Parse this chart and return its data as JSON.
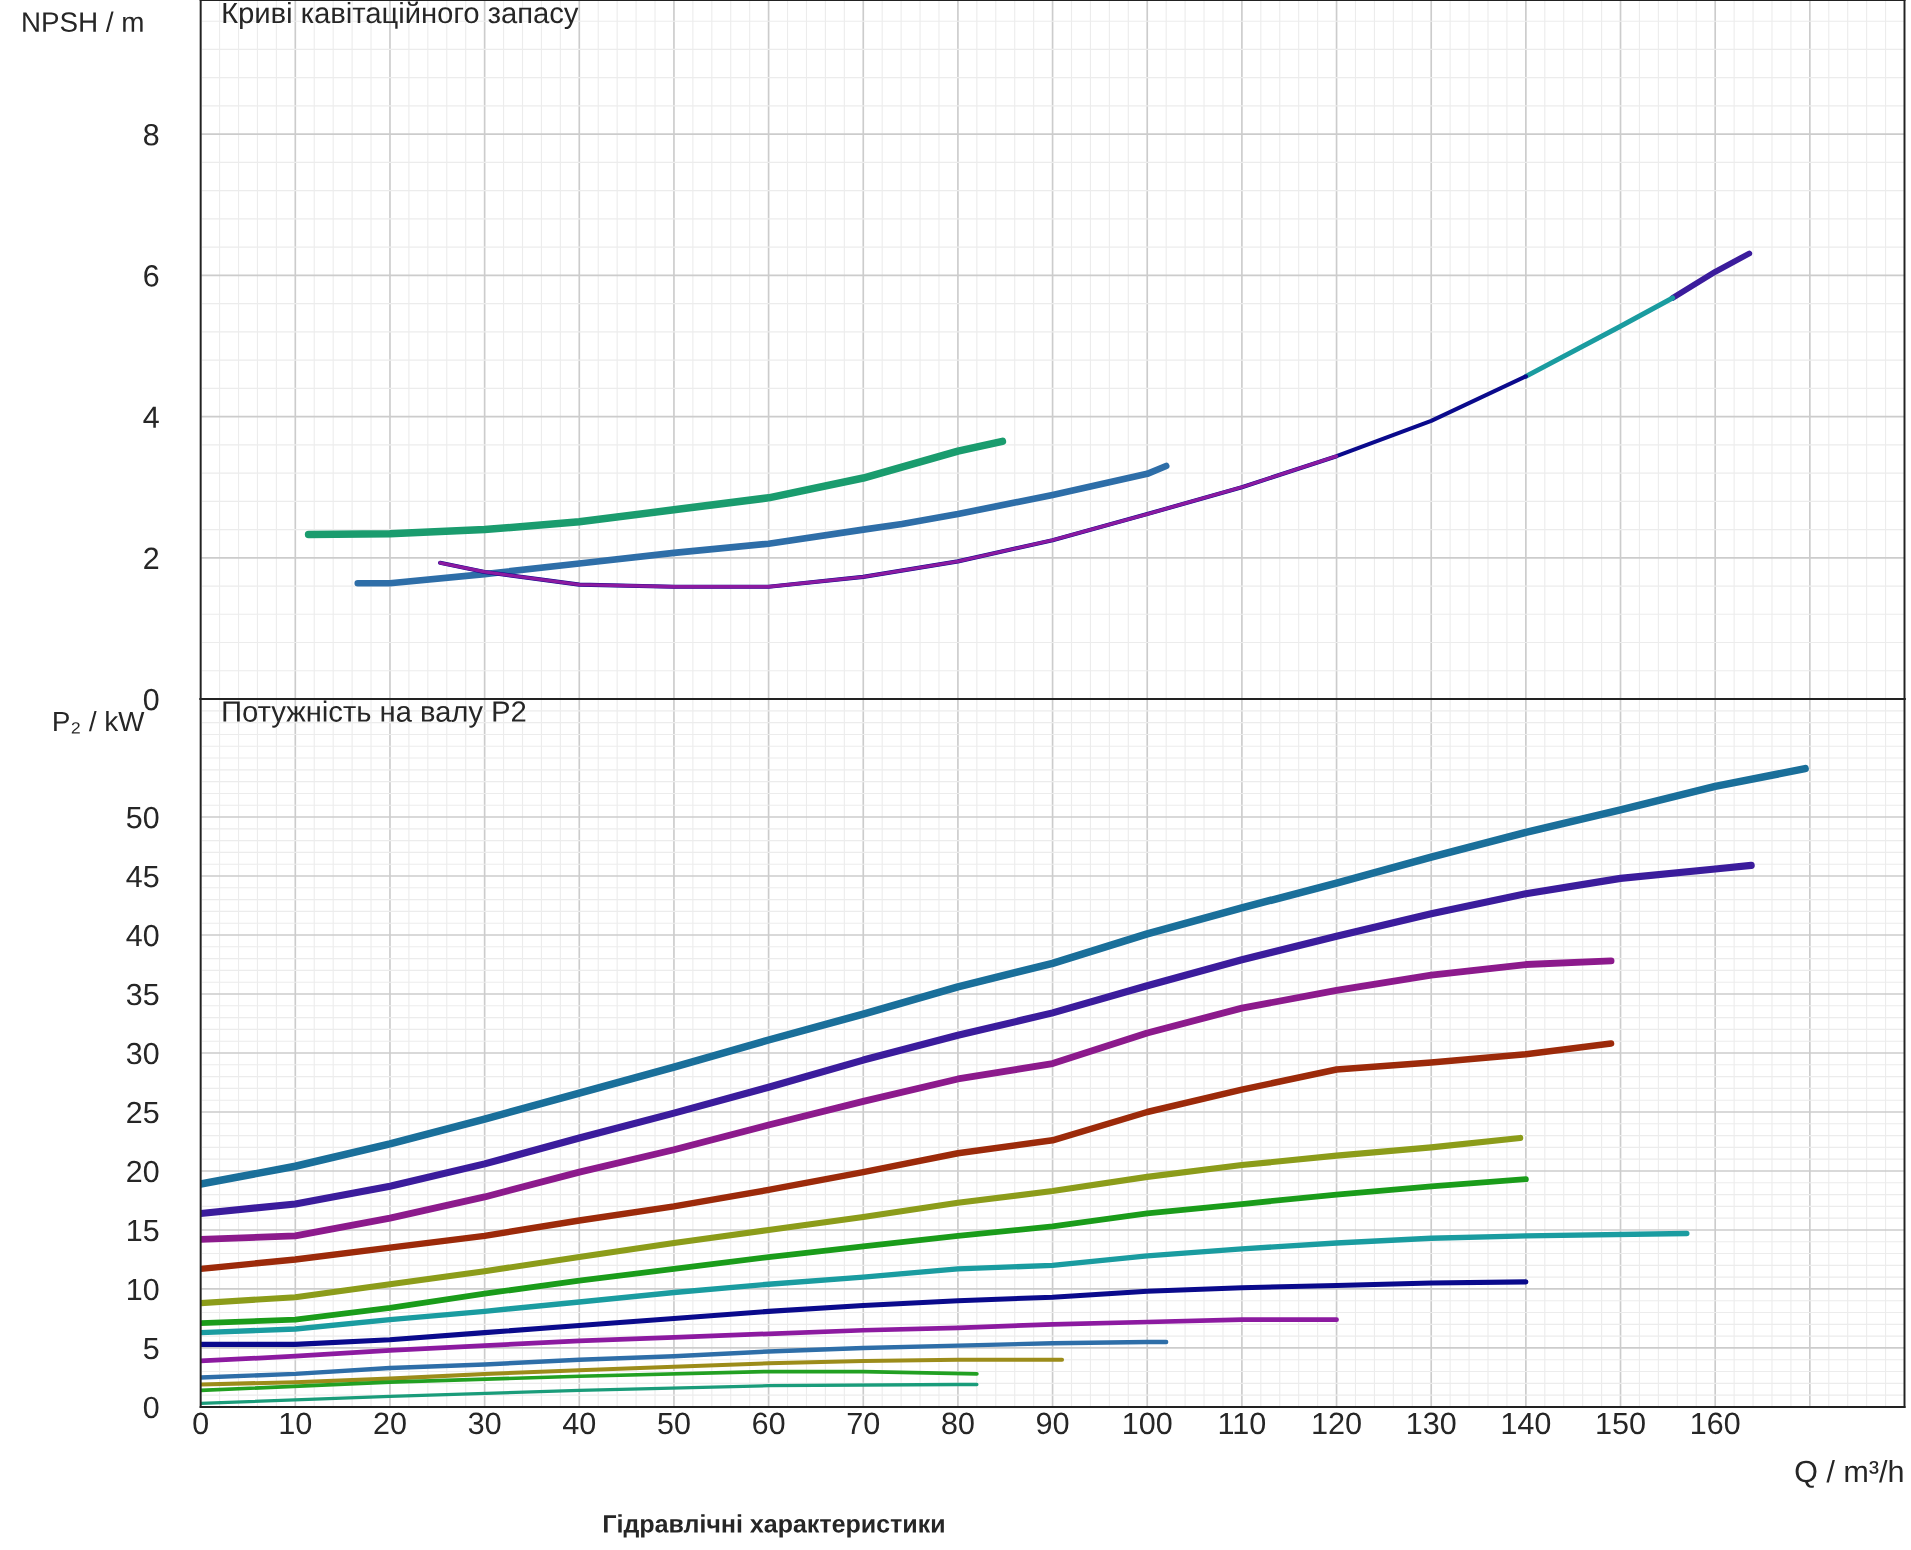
{
  "chart_data": [
    {
      "type": "line",
      "title": "Криві кавітаційного запасу",
      "ylabel": "NPSH / m",
      "xlim": [
        0,
        180
      ],
      "ylim": [
        0,
        9.9
      ],
      "xticks": [
        0,
        10,
        20,
        30,
        40,
        50,
        60,
        70,
        80,
        90,
        100,
        110,
        120,
        130,
        140,
        150,
        160,
        170
      ],
      "yticks": [
        0,
        2,
        4,
        6,
        8
      ],
      "tick_labels": "y",
      "grid": true,
      "legend": false,
      "series": [
        {
          "color": "#1a9c6e",
          "x": [
            11.4,
            20,
            30,
            40,
            50,
            60,
            70,
            80,
            84.7
          ],
          "values": [
            2.33,
            2.34,
            2.4,
            2.51,
            2.68,
            2.85,
            3.13,
            3.51,
            3.65
          ]
        },
        {
          "color": "#2e6ea8",
          "x": [
            16.6,
            20,
            30,
            40,
            50,
            60,
            70,
            74.1,
            80,
            90,
            100,
            102
          ],
          "values": [
            1.64,
            1.64,
            1.77,
            1.92,
            2.07,
            2.2,
            2.4,
            2.48,
            2.62,
            2.89,
            3.19,
            3.3
          ]
        },
        {
          "color": "#3b1c9c",
          "x": [
            155.5,
            160,
            163.6
          ],
          "values": [
            5.68,
            6.05,
            6.31
          ]
        },
        {
          "color": "#1a9ca0",
          "x": [
            140,
            150,
            155.5
          ],
          "values": [
            4.57,
            5.28,
            5.68
          ]
        },
        {
          "color": "#0a0a8c",
          "x": [
            25.3,
            30,
            40,
            50,
            60,
            70,
            80,
            90,
            100,
            110,
            120,
            130,
            140
          ],
          "values": [
            1.93,
            1.8,
            1.62,
            1.59,
            1.59,
            1.73,
            1.95,
            2.25,
            2.62,
            3.0,
            3.44,
            3.94,
            4.57
          ]
        },
        {
          "color": "#8c1aa0",
          "x": [
            25.3,
            30,
            40,
            50,
            60,
            70,
            80,
            90,
            100,
            110,
            120
          ],
          "values": [
            1.93,
            1.8,
            1.62,
            1.59,
            1.59,
            1.73,
            1.95,
            2.25,
            2.62,
            3.0,
            3.44
          ]
        }
      ]
    },
    {
      "type": "line",
      "title": "Потужність на валу P2",
      "ylabel": "P₂ / kW",
      "xlabel": "Q / m³/h",
      "xlim": [
        0,
        180
      ],
      "ylim": [
        0,
        60
      ],
      "xticks": [
        0,
        10,
        20,
        30,
        40,
        50,
        60,
        70,
        80,
        90,
        100,
        110,
        120,
        130,
        140,
        150,
        160,
        {
          "value": 170,
          "label": null
        }
      ],
      "yticks": [
        0,
        5,
        10,
        15,
        20,
        25,
        30,
        35,
        40,
        45,
        50
      ],
      "grid": true,
      "legend": false,
      "annotations": [
        "Гідравлічні характеристики"
      ],
      "series": [
        {
          "color": "#1a6f9a",
          "x": [
            0,
            10,
            20,
            30,
            40,
            50,
            60,
            70,
            80,
            90,
            100,
            110,
            120,
            130,
            140,
            150,
            160,
            169.5
          ],
          "values": [
            18.9,
            20.4,
            22.3,
            24.4,
            26.6,
            28.8,
            31.1,
            33.3,
            35.6,
            37.6,
            40.1,
            42.3,
            44.4,
            46.6,
            48.7,
            50.6,
            52.6,
            54.1
          ]
        },
        {
          "color": "#3b1c9c",
          "x": [
            0,
            10,
            20,
            30,
            40,
            50,
            60,
            70,
            80,
            90,
            100,
            110,
            120,
            130,
            140,
            150,
            160,
            163.8
          ],
          "values": [
            16.4,
            17.2,
            18.7,
            20.6,
            22.8,
            24.9,
            27.1,
            29.4,
            31.5,
            33.4,
            35.7,
            37.9,
            39.9,
            41.8,
            43.5,
            44.8,
            45.6,
            45.9
          ]
        },
        {
          "color": "#8c1a8c",
          "x": [
            0,
            10,
            20,
            30,
            40,
            50,
            60,
            70,
            80,
            90,
            100,
            110,
            120,
            130,
            140,
            149
          ],
          "values": [
            14.2,
            14.5,
            16.0,
            17.8,
            19.9,
            21.8,
            23.9,
            25.9,
            27.8,
            29.1,
            31.7,
            33.8,
            35.3,
            36.6,
            37.5,
            37.8
          ]
        },
        {
          "color": "#9c2a0a",
          "x": [
            0,
            10,
            20,
            30,
            40,
            50,
            60,
            70,
            80,
            90,
            100,
            110,
            120,
            130,
            140,
            149
          ],
          "values": [
            11.7,
            12.5,
            13.5,
            14.5,
            15.8,
            17.0,
            18.4,
            19.9,
            21.5,
            22.6,
            25.0,
            26.9,
            28.6,
            29.2,
            29.9,
            30.8
          ]
        },
        {
          "color": "#8c9c1a",
          "x": [
            0,
            10,
            20,
            30,
            40,
            50,
            60,
            70,
            80,
            90,
            100,
            110,
            120,
            130,
            139.4
          ],
          "values": [
            8.8,
            9.3,
            10.4,
            11.5,
            12.7,
            13.9,
            15.0,
            16.1,
            17.3,
            18.3,
            19.5,
            20.5,
            21.3,
            22.0,
            22.8
          ]
        },
        {
          "color": "#1a9c1a",
          "x": [
            0,
            10,
            20,
            30,
            40,
            50,
            60,
            70,
            80,
            90,
            100,
            110,
            120,
            130,
            140
          ],
          "values": [
            7.1,
            7.4,
            8.4,
            9.6,
            10.7,
            11.7,
            12.7,
            13.6,
            14.5,
            15.3,
            16.4,
            17.2,
            18.0,
            18.7,
            19.3
          ]
        },
        {
          "color": "#1a9ca0",
          "x": [
            0,
            10,
            20,
            30,
            40,
            50,
            60,
            70,
            80,
            90,
            100,
            110,
            120,
            130,
            140,
            157
          ],
          "values": [
            6.3,
            6.6,
            7.4,
            8.1,
            8.9,
            9.7,
            10.4,
            11.0,
            11.7,
            12.0,
            12.8,
            13.4,
            13.9,
            14.3,
            14.5,
            14.7
          ]
        },
        {
          "color": "#0a0a8c",
          "x": [
            0,
            10,
            20,
            30,
            40,
            50,
            60,
            70,
            80,
            90,
            100,
            110,
            120,
            130,
            140
          ],
          "values": [
            5.3,
            5.3,
            5.7,
            6.3,
            6.9,
            7.5,
            8.1,
            8.6,
            9.0,
            9.3,
            9.8,
            10.1,
            10.3,
            10.5,
            10.6
          ]
        },
        {
          "color": "#8c1aa0",
          "x": [
            0,
            10,
            20,
            30,
            40,
            50,
            60,
            70,
            80,
            90,
            100,
            110,
            120
          ],
          "values": [
            3.9,
            4.3,
            4.8,
            5.2,
            5.6,
            5.9,
            6.2,
            6.5,
            6.7,
            7.0,
            7.2,
            7.4,
            7.4
          ]
        },
        {
          "color": "#2e6ea8",
          "x": [
            0,
            10,
            20,
            30,
            40,
            50,
            60,
            70,
            80,
            90,
            100,
            102
          ],
          "values": [
            2.5,
            2.8,
            3.3,
            3.6,
            4.0,
            4.3,
            4.7,
            5.0,
            5.2,
            5.4,
            5.5,
            5.5
          ]
        },
        {
          "color": "#9c8c1a",
          "x": [
            0,
            10,
            20,
            30,
            40,
            50,
            60,
            70,
            80,
            91
          ],
          "values": [
            1.9,
            2.1,
            2.4,
            2.8,
            3.1,
            3.4,
            3.7,
            3.9,
            4.0,
            4.0
          ]
        },
        {
          "color": "#22a022",
          "x": [
            0,
            20,
            40,
            60,
            70,
            82
          ],
          "values": [
            1.4,
            2.1,
            2.6,
            3.0,
            3.0,
            2.8
          ]
        },
        {
          "color": "#1a9c7a",
          "x": [
            0,
            20,
            40,
            60,
            80,
            82
          ],
          "values": [
            0.3,
            0.9,
            1.4,
            1.8,
            1.9,
            1.9
          ]
        }
      ]
    }
  ]
}
